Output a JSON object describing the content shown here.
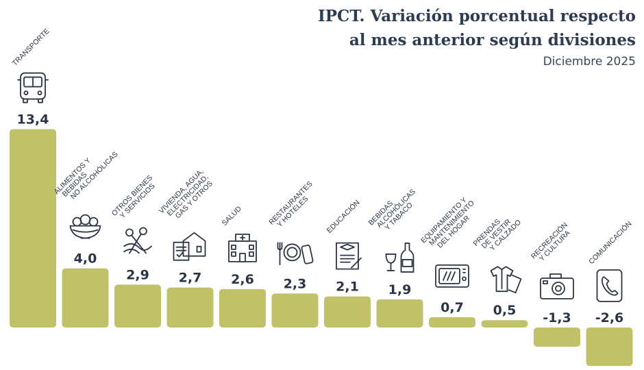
{
  "title_line1": "IPCT. Variación porcentual respecto",
  "title_line2": "al mes anterior según divisiones",
  "subtitle": "Diciembre 2025",
  "colors": {
    "bar": "#c0c168",
    "text": "#2b3545",
    "title": "#2e3c52"
  },
  "chart_data": {
    "type": "bar",
    "title": "IPCT. Variación porcentual respecto al mes anterior según divisiones",
    "subtitle": "Diciembre 2025",
    "categories": [
      [
        "TRANSPORTE"
      ],
      [
        "ALIMENTOS Y",
        "BEBIDAS",
        "NO ALCOHÓLICAS"
      ],
      [
        "OTROS BIENES",
        "Y SERVICIOS"
      ],
      [
        "VIVIENDA, AGUA,",
        "ELECTRICIDAD,",
        "GAS Y OTROS"
      ],
      [
        "SALUD"
      ],
      [
        "RESTAURANTES",
        "Y HOTELES"
      ],
      [
        "EDUCACIÓN"
      ],
      [
        "BEBIDAS",
        "ALCOHÓLICAS",
        "Y TABACO"
      ],
      [
        "EQUIPAMIENTO Y",
        "MANTENIMIENTO",
        "DEL HOGAR"
      ],
      [
        "PRENDAS",
        "DE VESTIR",
        "Y CALZADO"
      ],
      [
        "RECREACIÓN",
        "Y CULTURA"
      ],
      [
        "COMUNICACIÓN"
      ]
    ],
    "values": [
      13.4,
      4.0,
      2.9,
      2.7,
      2.6,
      2.3,
      2.1,
      1.9,
      0.7,
      0.5,
      -1.3,
      -2.6
    ],
    "value_labels": [
      "13,4",
      "4,0",
      "2,9",
      "2,7",
      "2,6",
      "2,3",
      "2,1",
      "1,9",
      "0,7",
      "0,5",
      "-1,3",
      "-2,6"
    ],
    "icons": [
      "bus-icon",
      "food-bowl-icon",
      "scissors-icon",
      "house-icon",
      "hospital-icon",
      "restaurant-icon",
      "education-icon",
      "wine-icon",
      "microwave-icon",
      "clothes-icon",
      "camera-icon",
      "phone-icon"
    ],
    "xlabel": "",
    "ylabel": "",
    "grid": false,
    "legend": "none"
  }
}
